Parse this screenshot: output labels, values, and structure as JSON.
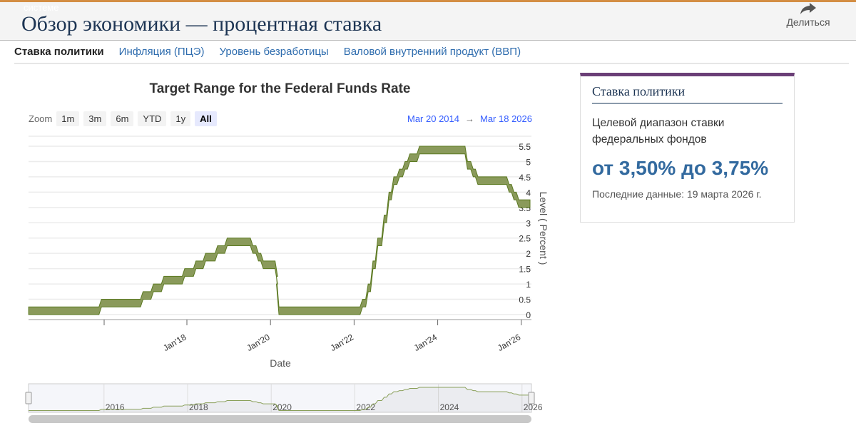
{
  "header": {
    "ghost_text": "системе",
    "title": "Обзор экономики — процентная ставка",
    "share_label": "Делиться"
  },
  "tabs": [
    {
      "label": "Ставка политики",
      "active": true
    },
    {
      "label": "Инфляция (ПЦЭ)"
    },
    {
      "label": "Уровень безработицы"
    },
    {
      "label": "Валовой внутренний продукт (ВВП)"
    }
  ],
  "zoom": {
    "label": "Zoom",
    "buttons": [
      "1m",
      "3m",
      "6m",
      "YTD",
      "1y",
      "All"
    ],
    "selected": "All"
  },
  "range": {
    "from": "Mar 20 2014",
    "arrow": "→",
    "to": "Mar 18 2026"
  },
  "chart_data": {
    "type": "area",
    "title": "Target Range for the Federal Funds Rate",
    "xlabel": "Date",
    "ylabel": "Level ( Percent )",
    "ylim": [
      0,
      5.5
    ],
    "yticks": [
      "0",
      "0.5",
      "1",
      "1.5",
      "2",
      "2.5",
      "3",
      "3.5",
      "4",
      "4.5",
      "5",
      "5.5"
    ],
    "xticks": [
      "Jan'18",
      "Jan'20",
      "Jan'22",
      "Jan'24",
      "Jan'26"
    ],
    "navigator_ticks": [
      "2016",
      "2018",
      "2020",
      "2022",
      "2024",
      "2026"
    ],
    "grid": true,
    "color": "#8a9a5b",
    "series": [
      {
        "date": "2014-03-20",
        "lower": 0,
        "upper": 0.25
      },
      {
        "date": "2015-12-16",
        "lower": 0.25,
        "upper": 0.5
      },
      {
        "date": "2016-12-14",
        "lower": 0.5,
        "upper": 0.75
      },
      {
        "date": "2017-03-15",
        "lower": 0.75,
        "upper": 1.0
      },
      {
        "date": "2017-06-14",
        "lower": 1.0,
        "upper": 1.25
      },
      {
        "date": "2017-12-13",
        "lower": 1.25,
        "upper": 1.5
      },
      {
        "date": "2018-03-21",
        "lower": 1.5,
        "upper": 1.75
      },
      {
        "date": "2018-06-13",
        "lower": 1.75,
        "upper": 2.0
      },
      {
        "date": "2018-09-26",
        "lower": 2.0,
        "upper": 2.25
      },
      {
        "date": "2018-12-19",
        "lower": 2.25,
        "upper": 2.5
      },
      {
        "date": "2019-07-31",
        "lower": 2.0,
        "upper": 2.25
      },
      {
        "date": "2019-09-18",
        "lower": 1.75,
        "upper": 2.0
      },
      {
        "date": "2019-10-30",
        "lower": 1.5,
        "upper": 1.75
      },
      {
        "date": "2020-03-03",
        "lower": 1.0,
        "upper": 1.25
      },
      {
        "date": "2020-03-15",
        "lower": 0,
        "upper": 0.25
      },
      {
        "date": "2022-03-16",
        "lower": 0.25,
        "upper": 0.5
      },
      {
        "date": "2022-05-04",
        "lower": 0.75,
        "upper": 1.0
      },
      {
        "date": "2022-06-15",
        "lower": 1.5,
        "upper": 1.75
      },
      {
        "date": "2022-07-27",
        "lower": 2.25,
        "upper": 2.5
      },
      {
        "date": "2022-09-21",
        "lower": 3.0,
        "upper": 3.25
      },
      {
        "date": "2022-11-02",
        "lower": 3.75,
        "upper": 4.0
      },
      {
        "date": "2022-12-14",
        "lower": 4.25,
        "upper": 4.5
      },
      {
        "date": "2023-02-01",
        "lower": 4.5,
        "upper": 4.75
      },
      {
        "date": "2023-03-22",
        "lower": 4.75,
        "upper": 5.0
      },
      {
        "date": "2023-05-03",
        "lower": 5.0,
        "upper": 5.25
      },
      {
        "date": "2023-07-26",
        "lower": 5.25,
        "upper": 5.5
      },
      {
        "date": "2024-09-18",
        "lower": 4.75,
        "upper": 5.0
      },
      {
        "date": "2024-11-07",
        "lower": 4.5,
        "upper": 4.75
      },
      {
        "date": "2024-12-18",
        "lower": 4.25,
        "upper": 4.5
      },
      {
        "date": "2025-09-17",
        "lower": 4.0,
        "upper": 4.25
      },
      {
        "date": "2025-10-29",
        "lower": 3.75,
        "upper": 4.0
      },
      {
        "date": "2025-12-10",
        "lower": 3.5,
        "upper": 3.75
      },
      {
        "date": "2026-03-18",
        "lower": 3.5,
        "upper": 3.75
      }
    ]
  },
  "card": {
    "title": "Ставка политики",
    "description": "Целевой диапазон ставки федеральных фондов",
    "value": "от 3,50% до 3,75%",
    "updated": "Последние данные: 19 марта 2026 г."
  }
}
